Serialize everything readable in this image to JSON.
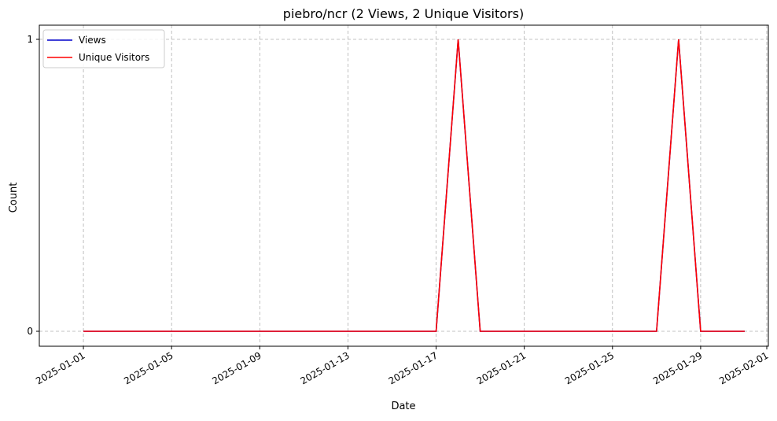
{
  "chart_data": {
    "type": "line",
    "title": "piebro/ncr (2 Views, 2 Unique Visitors)",
    "xlabel": "Date",
    "ylabel": "Count",
    "x": [
      "2025-01-01",
      "2025-01-02",
      "2025-01-03",
      "2025-01-04",
      "2025-01-05",
      "2025-01-06",
      "2025-01-07",
      "2025-01-08",
      "2025-01-09",
      "2025-01-10",
      "2025-01-11",
      "2025-01-12",
      "2025-01-13",
      "2025-01-14",
      "2025-01-15",
      "2025-01-16",
      "2025-01-17",
      "2025-01-18",
      "2025-01-19",
      "2025-01-20",
      "2025-01-21",
      "2025-01-22",
      "2025-01-23",
      "2025-01-24",
      "2025-01-25",
      "2025-01-26",
      "2025-01-27",
      "2025-01-28",
      "2025-01-29",
      "2025-01-30",
      "2025-01-31"
    ],
    "series": [
      {
        "name": "Views",
        "color": "#0000cc",
        "values": [
          0,
          0,
          0,
          0,
          0,
          0,
          0,
          0,
          0,
          0,
          0,
          0,
          0,
          0,
          0,
          0,
          0,
          1,
          0,
          0,
          0,
          0,
          0,
          0,
          0,
          0,
          0,
          1,
          0,
          0,
          0
        ]
      },
      {
        "name": "Unique Visitors",
        "color": "#ff0000",
        "values": [
          0,
          0,
          0,
          0,
          0,
          0,
          0,
          0,
          0,
          0,
          0,
          0,
          0,
          0,
          0,
          0,
          0,
          1,
          0,
          0,
          0,
          0,
          0,
          0,
          0,
          0,
          0,
          1,
          0,
          0,
          0
        ]
      }
    ],
    "xticks": [
      "2025-01-01",
      "2025-01-05",
      "2025-01-09",
      "2025-01-13",
      "2025-01-17",
      "2025-01-21",
      "2025-01-25",
      "2025-01-29",
      "2025-02-01"
    ],
    "yticks": [
      0,
      1
    ],
    "xlim": [
      "2024-12-30",
      "2025-02-01"
    ],
    "ylim": [
      0,
      1
    ],
    "grid": true,
    "legend": "top-left"
  }
}
